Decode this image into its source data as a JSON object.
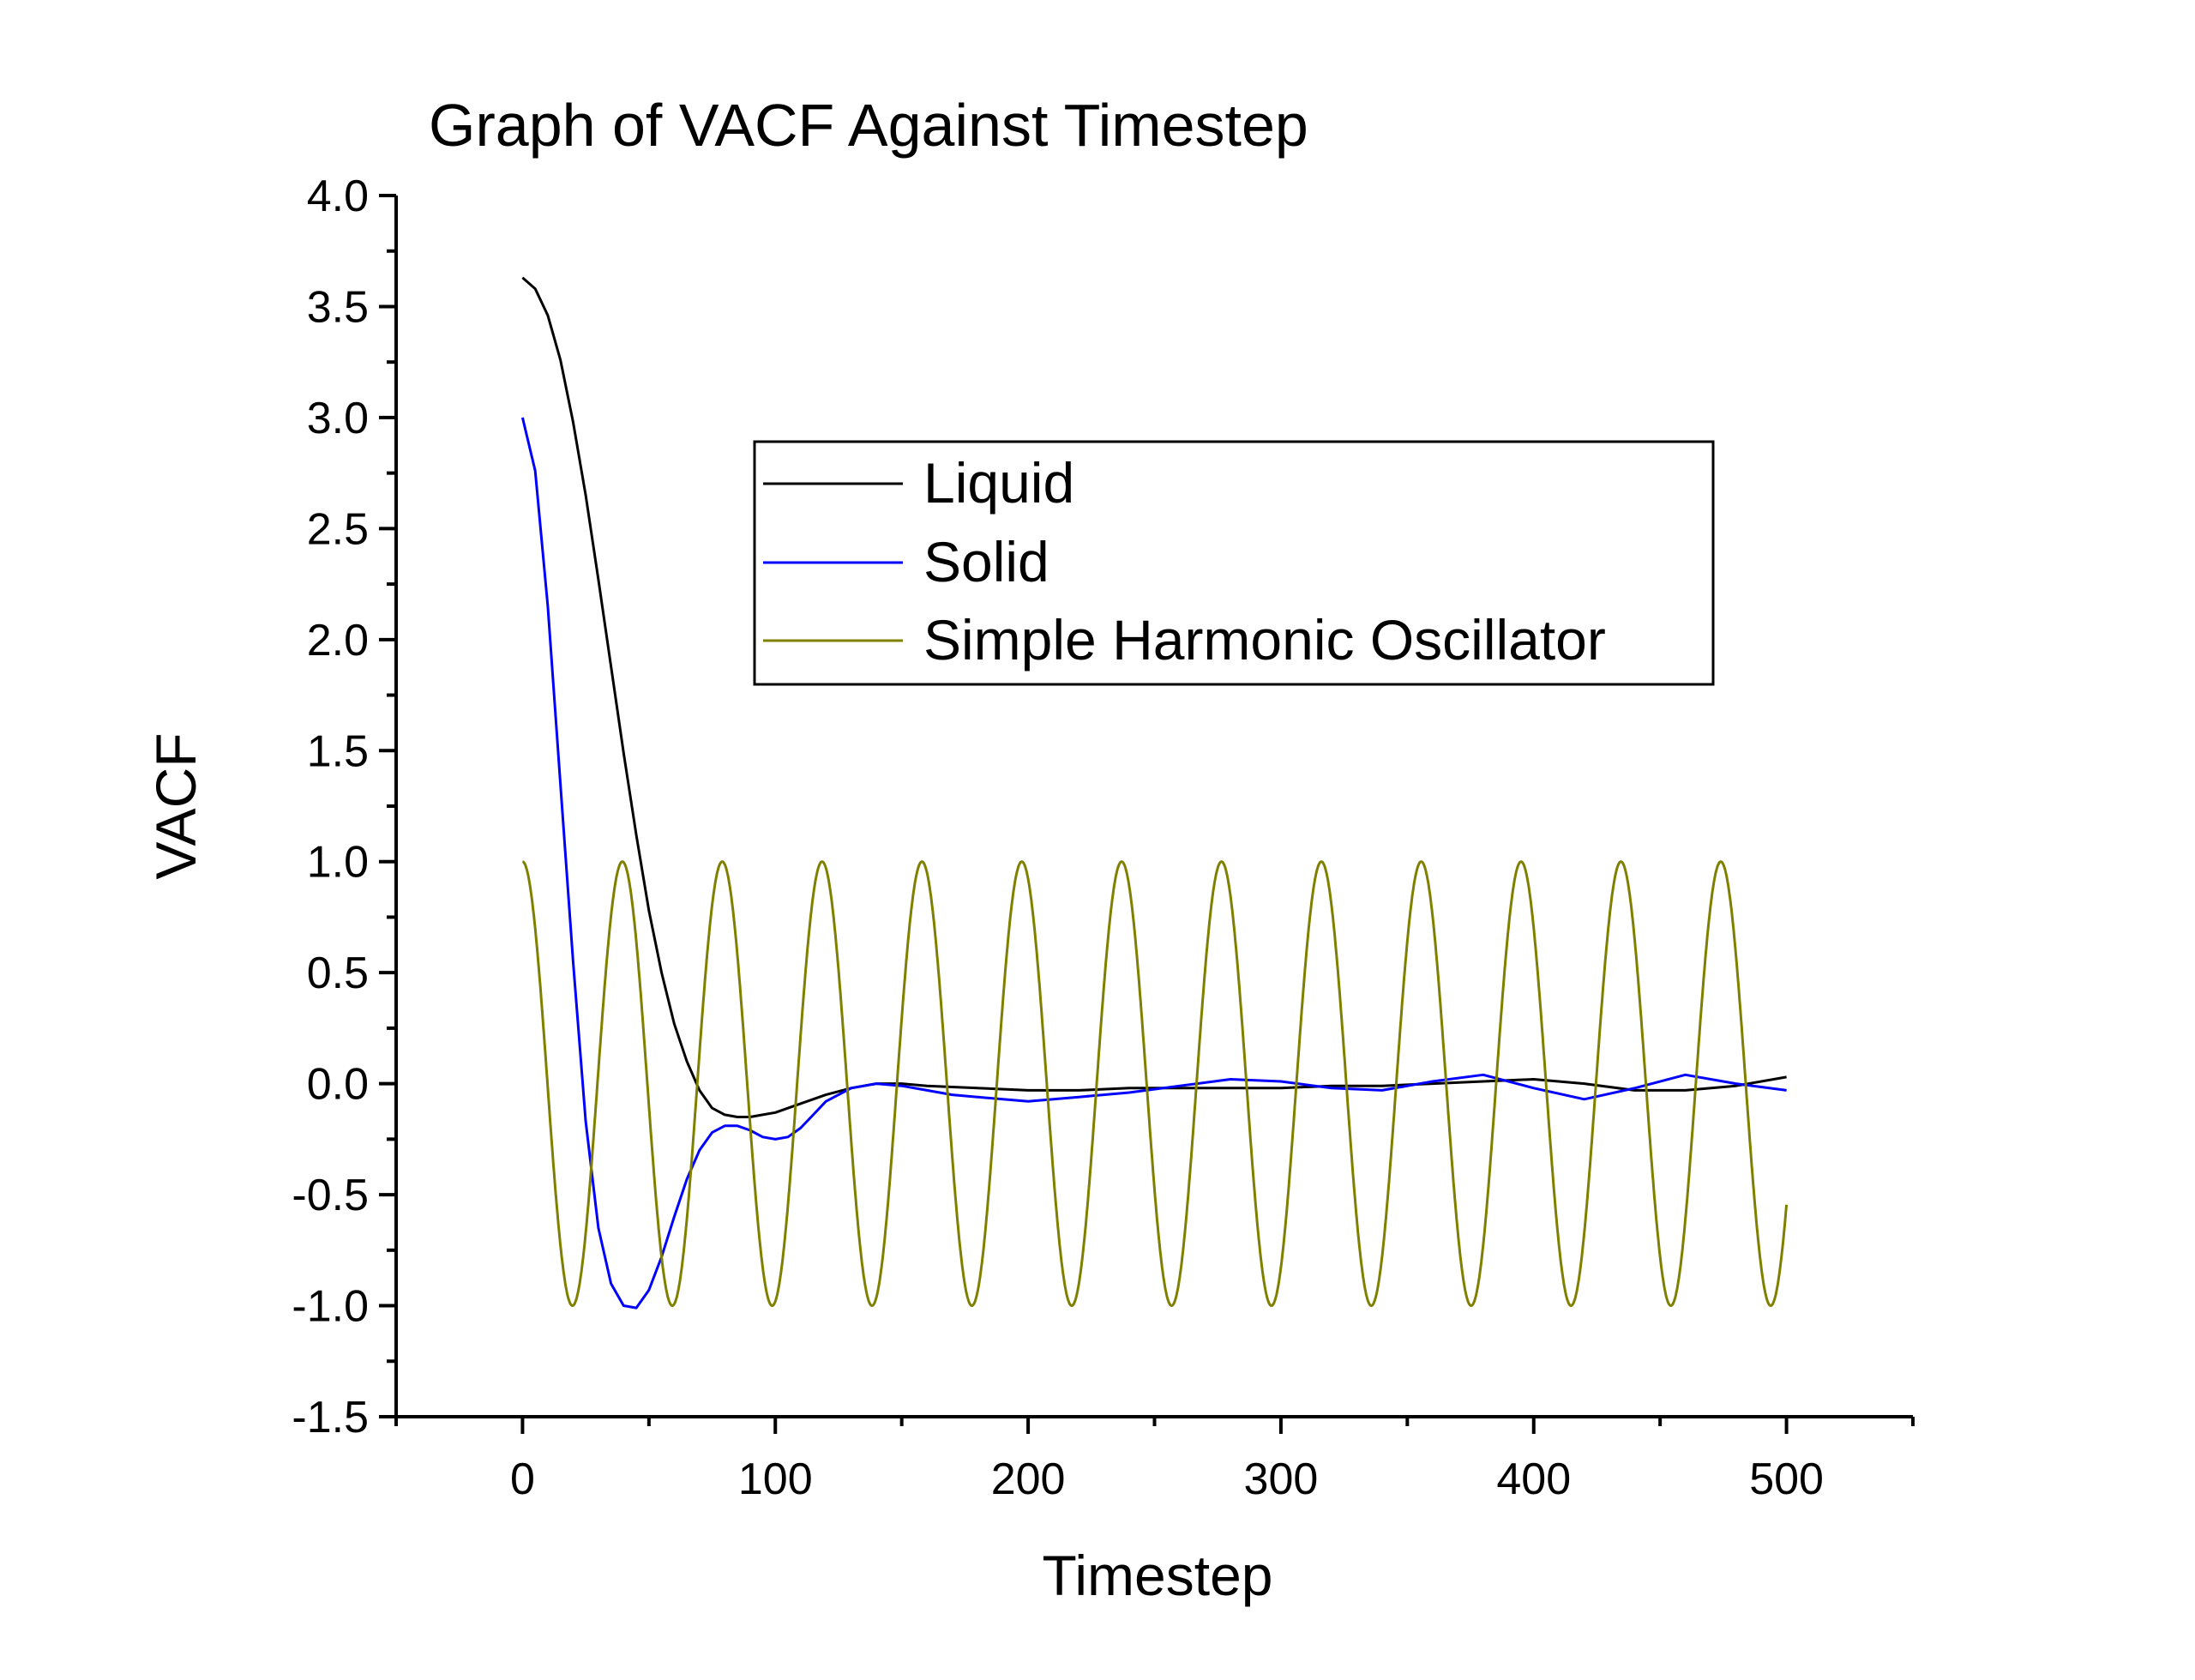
{
  "chart_data": {
    "type": "line",
    "title": "Graph of VACF Against Timestep",
    "xlabel": "Timestep",
    "ylabel": "VACF",
    "xlim": [
      -50,
      550
    ],
    "ylim": [
      -1.5,
      4.0
    ],
    "xticks": [
      0,
      100,
      200,
      300,
      400,
      500
    ],
    "xtick_labels": [
      "0",
      "100",
      "200",
      "300",
      "400",
      "500"
    ],
    "yticks": [
      -1.5,
      -1.0,
      -0.5,
      0.0,
      0.5,
      1.0,
      1.5,
      2.0,
      2.5,
      3.0,
      3.5,
      4.0
    ],
    "ytick_labels": [
      "-1.5",
      "-1.0",
      "-0.5",
      "0.0",
      "0.5",
      "1.0",
      "1.5",
      "2.0",
      "2.5",
      "3.0",
      "3.5",
      "4.0"
    ],
    "grid": false,
    "legend_position": "upper-center",
    "series": [
      {
        "name": "Liquid",
        "color": "#000000",
        "x": [
          0,
          5,
          10,
          15,
          20,
          25,
          30,
          35,
          40,
          45,
          50,
          55,
          60,
          65,
          70,
          75,
          80,
          85,
          90,
          95,
          100,
          110,
          120,
          130,
          140,
          150,
          160,
          180,
          200,
          220,
          240,
          260,
          280,
          300,
          320,
          340,
          360,
          380,
          400,
          420,
          440,
          460,
          480,
          500
        ],
        "y": [
          3.63,
          3.58,
          3.46,
          3.26,
          2.98,
          2.65,
          2.27,
          1.88,
          1.49,
          1.12,
          0.78,
          0.5,
          0.27,
          0.1,
          -0.03,
          -0.11,
          -0.14,
          -0.15,
          -0.15,
          -0.14,
          -0.13,
          -0.09,
          -0.05,
          -0.02,
          0.0,
          0.0,
          -0.01,
          -0.02,
          -0.03,
          -0.03,
          -0.02,
          -0.02,
          -0.02,
          -0.02,
          -0.01,
          -0.01,
          0.0,
          0.01,
          0.02,
          0.0,
          -0.03,
          -0.03,
          -0.01,
          0.03
        ]
      },
      {
        "name": "Solid",
        "color": "#0000ff",
        "x": [
          0,
          5,
          10,
          15,
          20,
          25,
          30,
          35,
          40,
          45,
          50,
          55,
          60,
          65,
          70,
          75,
          80,
          85,
          90,
          95,
          100,
          105,
          110,
          115,
          120,
          130,
          140,
          150,
          160,
          170,
          180,
          190,
          200,
          210,
          220,
          240,
          260,
          280,
          300,
          320,
          340,
          360,
          380,
          400,
          420,
          440,
          460,
          480,
          500
        ],
        "y": [
          3.0,
          2.76,
          2.15,
          1.35,
          0.55,
          -0.17,
          -0.65,
          -0.9,
          -1.0,
          -1.01,
          -0.93,
          -0.78,
          -0.6,
          -0.43,
          -0.3,
          -0.22,
          -0.19,
          -0.19,
          -0.21,
          -0.24,
          -0.25,
          -0.24,
          -0.2,
          -0.14,
          -0.08,
          -0.02,
          0.0,
          -0.01,
          -0.03,
          -0.05,
          -0.06,
          -0.07,
          -0.08,
          -0.07,
          -0.06,
          -0.04,
          -0.01,
          0.02,
          0.01,
          -0.02,
          -0.03,
          0.01,
          0.04,
          -0.02,
          -0.07,
          -0.02,
          0.04,
          0.0,
          -0.03
        ]
      },
      {
        "name": "Simple Harmonic Oscillator",
        "color": "#808000",
        "function": "cos",
        "amplitude": 1.0,
        "period": 39.5,
        "x_start": 0,
        "x_end": 500,
        "end_value": -0.51
      }
    ]
  }
}
